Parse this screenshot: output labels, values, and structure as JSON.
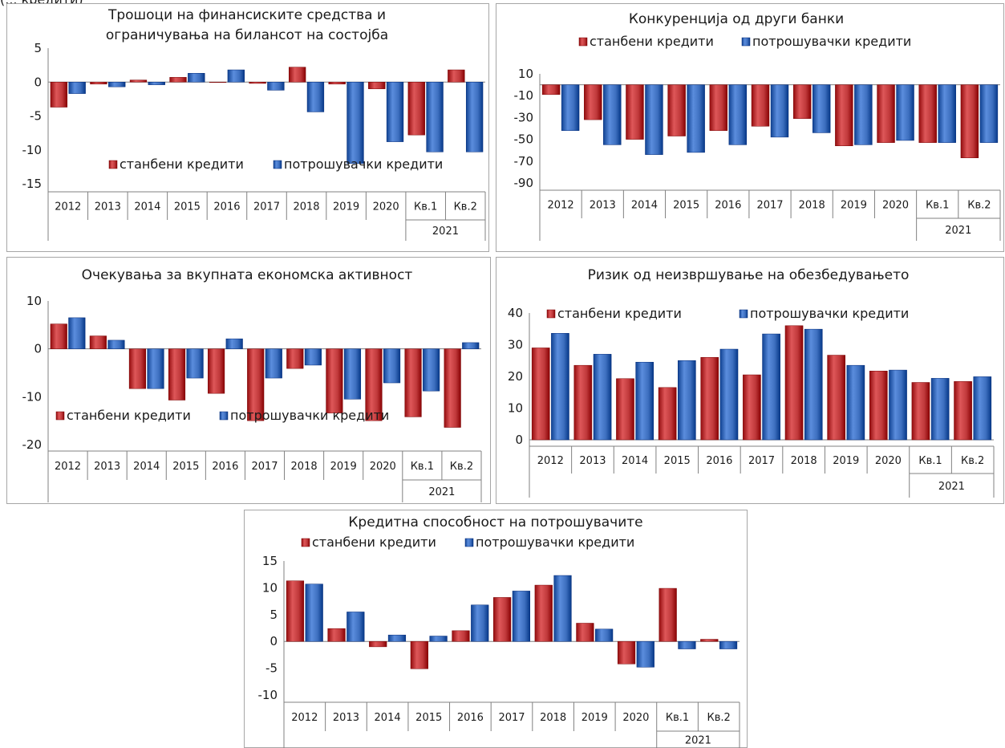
{
  "header_fragment": "(... кредити)",
  "legend": {
    "housing": "станбени кредити",
    "consumer": "потрошувачки кредити"
  },
  "colors": {
    "housing": "#c0393b",
    "consumer": "#3d6fbf"
  },
  "chart_data": [
    {
      "type": "bar",
      "title": [
        "Трошоци на финансиските средства и",
        "ограничувања на билансот на состојба"
      ],
      "categories": [
        "2012",
        "2013",
        "2014",
        "2015",
        "2016",
        "2017",
        "2018",
        "2019",
        "2020",
        "Кв.1",
        "Кв.2"
      ],
      "category_group": "2021",
      "ylim": [
        -15,
        5
      ],
      "yticks": [
        5,
        0,
        -5,
        -10,
        -15
      ],
      "series": [
        {
          "name": "станбени кредити",
          "values": [
            -3.7,
            -0.3,
            0.3,
            0.7,
            0.0,
            -0.2,
            2.2,
            -0.3,
            -1.0,
            -7.8,
            1.8
          ]
        },
        {
          "name": "потрошувачки кредити",
          "values": [
            -1.7,
            -0.7,
            -0.4,
            1.3,
            1.8,
            -1.2,
            -4.4,
            -12.0,
            -8.8,
            -10.3,
            -10.3
          ]
        }
      ],
      "legend_position": "bottom"
    },
    {
      "type": "bar",
      "title": [
        "Конкуренција од други банки"
      ],
      "categories": [
        "2012",
        "2013",
        "2014",
        "2015",
        "2016",
        "2017",
        "2018",
        "2019",
        "2020",
        "Кв.1",
        "Кв.2"
      ],
      "category_group": "2021",
      "ylim": [
        -90,
        10
      ],
      "yticks": [
        10,
        -10,
        -30,
        -50,
        -70,
        -90
      ],
      "series": [
        {
          "name": "станбени кредити",
          "values": [
            -9,
            -32,
            -50,
            -47,
            -42,
            -38,
            -31,
            -56,
            -53,
            -53,
            -67
          ]
        },
        {
          "name": "потрошувачки кредити",
          "values": [
            -42,
            -55,
            -64,
            -62,
            -55,
            -48,
            -44,
            -55,
            -51,
            -53,
            -53
          ]
        }
      ],
      "legend_position": "top"
    },
    {
      "type": "bar",
      "title": [
        "Очекувања за вкупната економска активност"
      ],
      "categories": [
        "2012",
        "2013",
        "2014",
        "2015",
        "2016",
        "2017",
        "2018",
        "2019",
        "2020",
        "Кв.1",
        "Кв.2"
      ],
      "category_group": "2021",
      "ylim": [
        -20,
        10
      ],
      "yticks": [
        10,
        0,
        -10,
        -20
      ],
      "series": [
        {
          "name": "станбени кредити",
          "values": [
            5.2,
            2.7,
            -8.3,
            -10.7,
            -9.3,
            -15.0,
            -4.1,
            -13.4,
            -15.0,
            -14.2,
            -16.4
          ]
        },
        {
          "name": "потрошувачки кредити",
          "values": [
            6.5,
            1.8,
            -8.3,
            -6.1,
            2.1,
            -6.1,
            -3.4,
            -10.5,
            -7.1,
            -8.8,
            1.3
          ]
        }
      ],
      "legend_position": "bottom"
    },
    {
      "type": "bar",
      "title": [
        "Ризик од неизвршување на обезбедувањето"
      ],
      "categories": [
        "2012",
        "2013",
        "2014",
        "2015",
        "2016",
        "2017",
        "2018",
        "2019",
        "2020",
        "Кв.1",
        "Кв.2"
      ],
      "category_group": "2021",
      "ylim": [
        0,
        40
      ],
      "yticks": [
        40,
        30,
        20,
        10,
        0
      ],
      "series": [
        {
          "name": "станбени кредити",
          "values": [
            29,
            23.5,
            19.3,
            16.5,
            26,
            20.5,
            36,
            26.7,
            21.7,
            18.1,
            18.4
          ]
        },
        {
          "name": "потрошувачки кредити",
          "values": [
            33.6,
            27,
            24.5,
            25,
            28.6,
            33.4,
            34.9,
            23.5,
            22,
            19.4,
            19.9
          ]
        }
      ],
      "legend_position": "top"
    },
    {
      "type": "bar",
      "title": [
        "Кредитна способност на потрошувачите"
      ],
      "categories": [
        "2012",
        "2013",
        "2014",
        "2015",
        "2016",
        "2017",
        "2018",
        "2019",
        "2020",
        "Кв.1",
        "Кв.2"
      ],
      "category_group": "2021",
      "ylim": [
        -10,
        15
      ],
      "yticks": [
        15,
        10,
        5,
        0,
        -5,
        -10
      ],
      "series": [
        {
          "name": "станбени кредити",
          "values": [
            11.3,
            2.4,
            -1.0,
            -5.1,
            2.0,
            8.2,
            10.5,
            3.4,
            -4.2,
            9.9,
            0.4
          ]
        },
        {
          "name": "потрошувачки кредити",
          "values": [
            10.7,
            5.5,
            1.2,
            1.0,
            6.8,
            9.4,
            12.3,
            2.3,
            -4.8,
            -1.4,
            -1.4
          ]
        }
      ],
      "legend_position": "top"
    }
  ]
}
